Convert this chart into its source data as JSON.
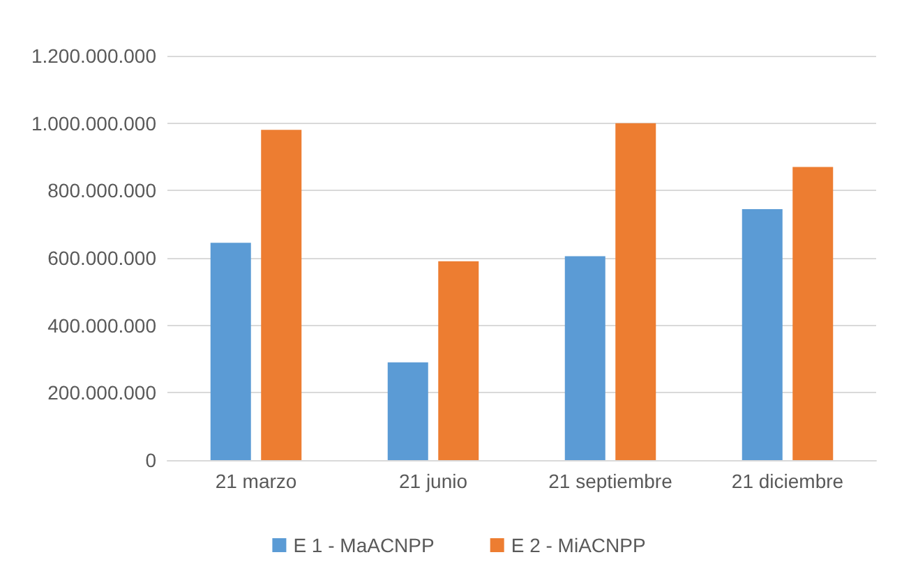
{
  "chart_data": {
    "type": "bar",
    "categories": [
      "21 marzo",
      "21 junio",
      "21 septiembre",
      "21 diciembre"
    ],
    "series": [
      {
        "name": "E 1 - MaACNPP",
        "color": "#5b9bd5",
        "values": [
          645000000,
          290000000,
          605000000,
          745000000
        ]
      },
      {
        "name": "E 2 - MiACNPP",
        "color": "#ed7d31",
        "values": [
          980000000,
          590000000,
          1000000000,
          870000000
        ]
      }
    ],
    "ylim": [
      0,
      1200000000
    ],
    "yticks": [
      {
        "value": 0,
        "label": "0"
      },
      {
        "value": 200000000,
        "label": "200.000.000"
      },
      {
        "value": 400000000,
        "label": "400.000.000"
      },
      {
        "value": 600000000,
        "label": "600.000.000"
      },
      {
        "value": 800000000,
        "label": "800.000.000"
      },
      {
        "value": 1000000000,
        "label": "1.000.000.000"
      },
      {
        "value": 1200000000,
        "label": "1.200.000.000"
      }
    ],
    "grid": "y",
    "legend": "bottom"
  }
}
